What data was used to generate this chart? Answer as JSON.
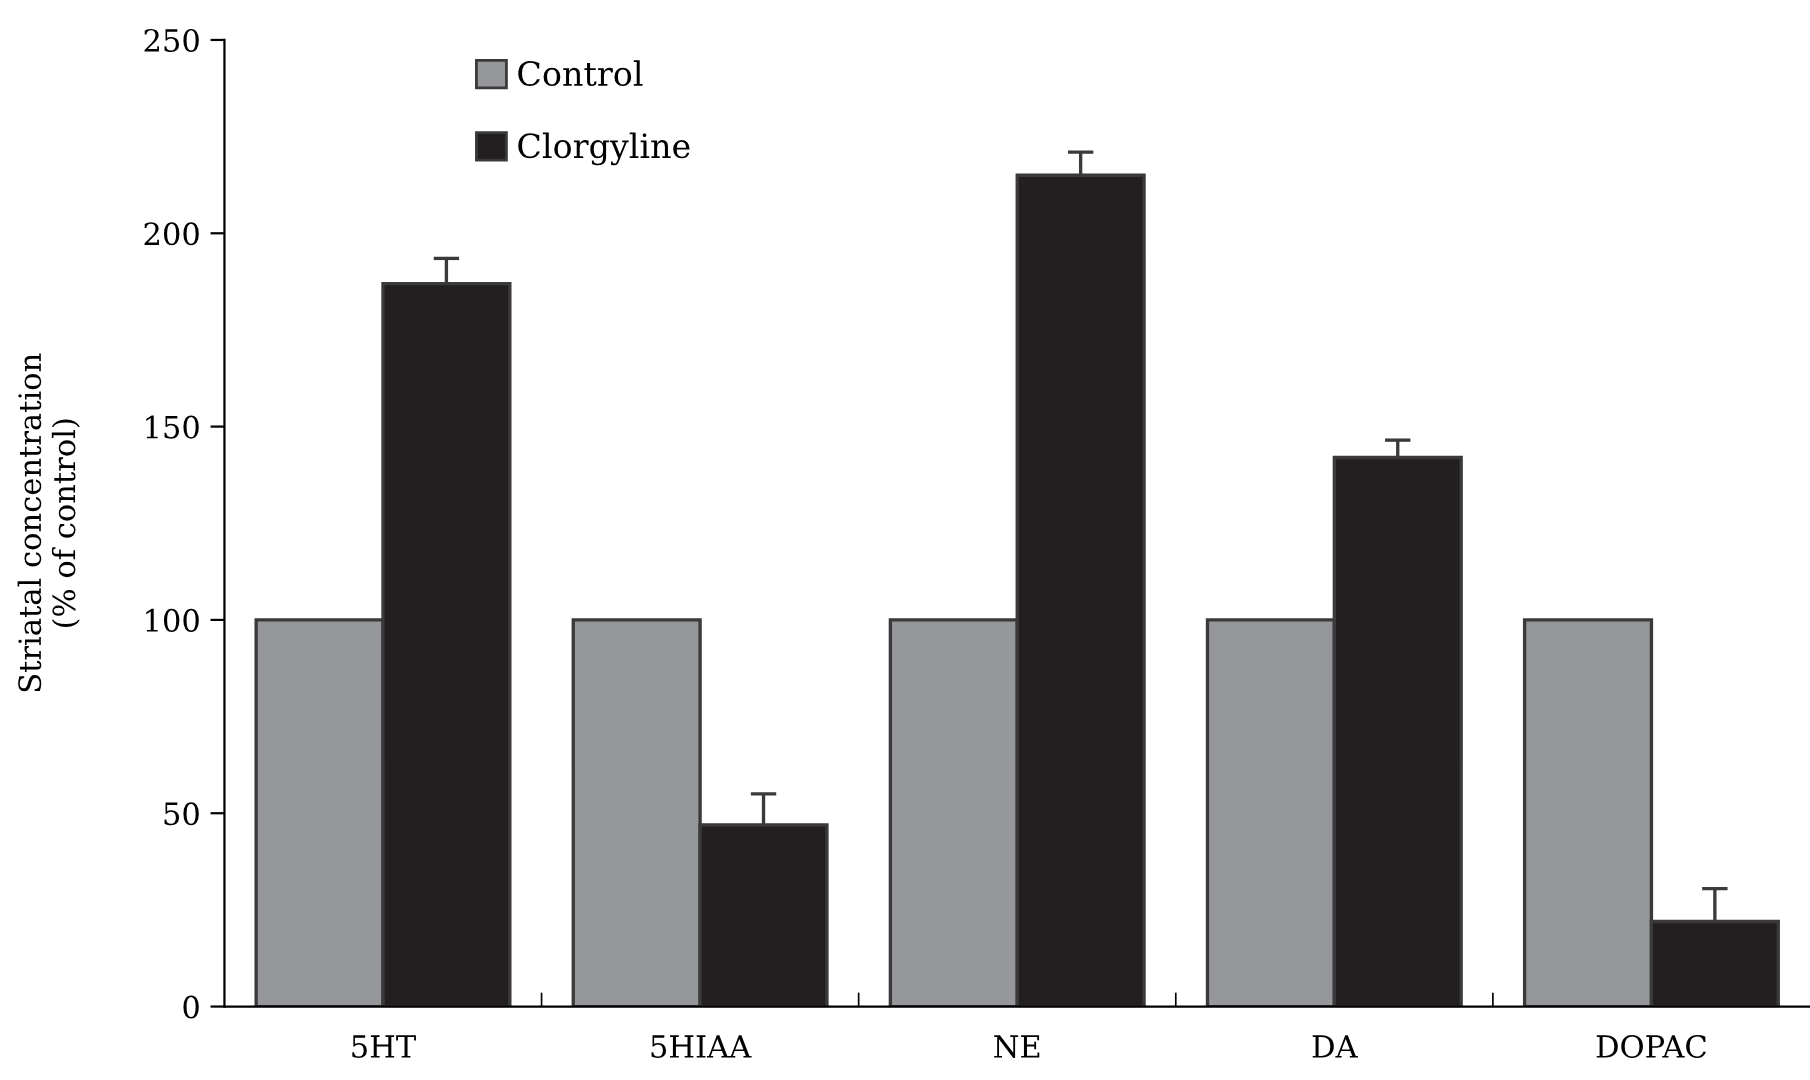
{
  "chart_data": {
    "type": "bar",
    "ylabel": "Striatal concentration\n(% of control)",
    "categories": [
      "5HT",
      "5HIAA",
      "NE",
      "DA",
      "DOPAC"
    ],
    "series": [
      {
        "name": "Control",
        "color": "#96979b",
        "values": [
          100,
          100,
          100,
          100,
          100
        ]
      },
      {
        "name": "Clorgyline",
        "color": "#231f20",
        "values": [
          187,
          47,
          215,
          142,
          22
        ],
        "errors": [
          [
            187,
            193.5
          ],
          [
            47,
            55
          ],
          [
            215,
            221
          ],
          [
            142,
            146.5
          ],
          [
            22,
            30.5
          ]
        ]
      }
    ],
    "ylim": [
      0,
      250
    ],
    "yticks": [
      0,
      50,
      100,
      150,
      200,
      250
    ],
    "grid": false,
    "legend": "top left"
  }
}
